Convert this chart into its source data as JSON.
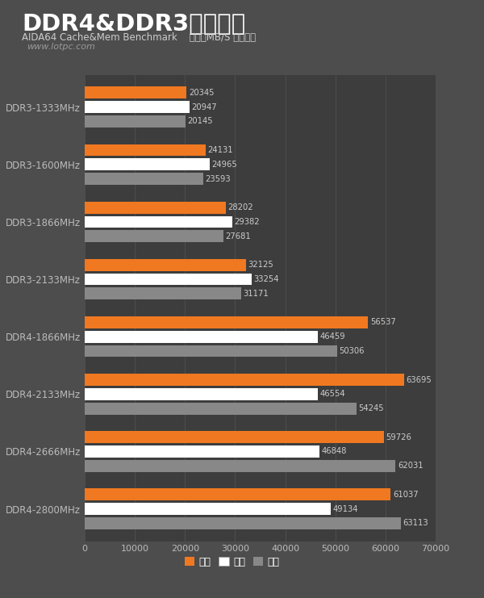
{
  "title": "DDR4&DDR3对比测试",
  "subtitle": "AIDA64 Cache&Mem Benchmark    单位：MB/S 越大越好",
  "watermark": "www.lotpc.com",
  "background_color": "#4d4d4d",
  "plot_bg_color": "#3d3d3d",
  "categories": [
    "DDR3-1333MHz",
    "DDR3-1600MHz",
    "DDR3-1866MHz",
    "DDR3-2133MHz",
    "DDR4-1866MHz",
    "DDR4-2133MHz",
    "DDR4-2666MHz",
    "DDR4-2800MHz"
  ],
  "read": [
    20345,
    24131,
    28202,
    32125,
    56537,
    63695,
    59726,
    61037
  ],
  "write": [
    20947,
    24965,
    29382,
    33254,
    46459,
    46554,
    46848,
    49134
  ],
  "copy": [
    20145,
    23593,
    27681,
    31171,
    50306,
    54245,
    62031,
    63113
  ],
  "read_color": "#f07820",
  "write_color": "#ffffff",
  "copy_color": "#888888",
  "xlim": [
    0,
    70000
  ],
  "xticks": [
    0,
    10000,
    20000,
    30000,
    40000,
    50000,
    60000,
    70000
  ],
  "tick_color": "#bbbbbb",
  "value_color": "#cccccc",
  "legend_labels": [
    "读取",
    "写入",
    "拷贝"
  ],
  "title_color": "#ffffff",
  "subtitle_color": "#cccccc",
  "watermark_color": "#999999",
  "grid_color": "#555555"
}
